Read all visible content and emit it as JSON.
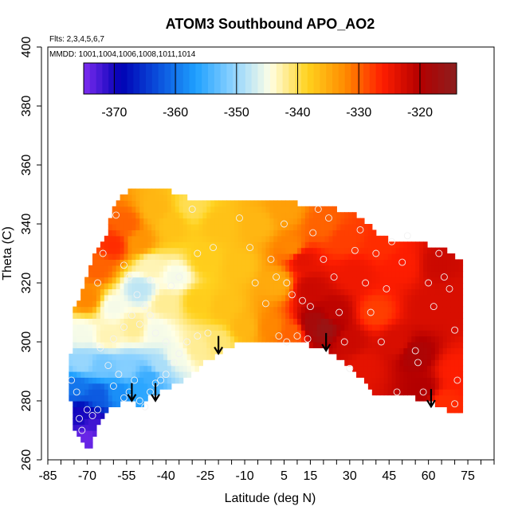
{
  "chart_data": {
    "type": "heatmap",
    "title": "ATOM3 Southbound APO_AO2",
    "annotations": {
      "flights": "Flts: 2,3,4,5,6,7",
      "dates": "MMDD: 1001,1004,1006,1008,1011,1014"
    },
    "xlabel": "Latitude (deg N)",
    "ylabel": "Theta (C)",
    "xlim": [
      -85,
      85
    ],
    "ylim": [
      260,
      400
    ],
    "x_ticks": [
      -85,
      -70,
      -55,
      -40,
      -25,
      -10,
      5,
      15,
      30,
      45,
      60,
      75
    ],
    "x_tick_labels": [
      "-85",
      "-70",
      "-55",
      "-40",
      "-25",
      "-10",
      "5",
      "15",
      "30",
      "45",
      "60",
      "75"
    ],
    "y_ticks": [
      260,
      280,
      300,
      320,
      340,
      360,
      380,
      400
    ],
    "y_tick_labels": [
      "260",
      "280",
      "300",
      "320",
      "340",
      "360",
      "380",
      "400"
    ],
    "grid": false,
    "colorbar": {
      "range": [
        -375,
        -314
      ],
      "ticks": [
        -370,
        -360,
        -350,
        -340,
        -330,
        -320
      ],
      "tick_labels": [
        "-370",
        "-360",
        "-350",
        "-340",
        "-330",
        "-320"
      ],
      "colors": [
        "#7d2cf0",
        "#0000b4",
        "#0a50dc",
        "#1ea0ff",
        "#8cd2ff",
        "#ffffe6",
        "#ffd21e",
        "#ff8c00",
        "#ff1e00",
        "#b40000",
        "#8c1e1e"
      ]
    },
    "domain": {
      "lat": [
        -77,
        -75,
        -72,
        -70,
        -68,
        -66,
        -63,
        -60,
        -57,
        -55,
        -52,
        -50,
        -47,
        -45,
        -42,
        -40,
        -36,
        -32,
        -28,
        -24,
        -20,
        -16,
        -12,
        -8,
        -4,
        0,
        5,
        10,
        15,
        20,
        25,
        30,
        35,
        40,
        45,
        50,
        55,
        60,
        65,
        70,
        72
      ],
      "theta_top": [
        287,
        310,
        316,
        322,
        327,
        330,
        335,
        344,
        348,
        350,
        351,
        352,
        352,
        352,
        352,
        351,
        349,
        348,
        348,
        348,
        348,
        348,
        348,
        348,
        348,
        348,
        348,
        346,
        345,
        345,
        344,
        343,
        341,
        336,
        334,
        333,
        333,
        332,
        331,
        328,
        327
      ],
      "theta_bottom": [
        287,
        272,
        267,
        264,
        266,
        272,
        277,
        279,
        280,
        281,
        280,
        279,
        282,
        283,
        284,
        285,
        287,
        289,
        292,
        295,
        297,
        299,
        301,
        301,
        300,
        300,
        300,
        300,
        300,
        299,
        296,
        293,
        288,
        283,
        282,
        282,
        282,
        281,
        279,
        277,
        276
      ]
    },
    "field_points": [
      {
        "lat": -70,
        "theta": 268,
        "value": -374
      },
      {
        "lat": -72,
        "theta": 275,
        "value": -370
      },
      {
        "lat": -68,
        "theta": 272,
        "value": -372
      },
      {
        "lat": -74,
        "theta": 285,
        "value": -360
      },
      {
        "lat": -66,
        "theta": 282,
        "value": -362
      },
      {
        "lat": -58,
        "theta": 283,
        "value": -358
      },
      {
        "lat": -50,
        "theta": 285,
        "value": -356
      },
      {
        "lat": -46,
        "theta": 288,
        "value": -355
      },
      {
        "lat": -72,
        "theta": 293,
        "value": -350
      },
      {
        "lat": -64,
        "theta": 292,
        "value": -352
      },
      {
        "lat": -55,
        "theta": 291,
        "value": -351
      },
      {
        "lat": -42,
        "theta": 292,
        "value": -349
      },
      {
        "lat": -36,
        "theta": 295,
        "value": -345
      },
      {
        "lat": -28,
        "theta": 298,
        "value": -342
      },
      {
        "lat": -20,
        "theta": 300,
        "value": -341
      },
      {
        "lat": -72,
        "theta": 303,
        "value": -345
      },
      {
        "lat": -62,
        "theta": 302,
        "value": -343
      },
      {
        "lat": -52,
        "theta": 305,
        "value": -342
      },
      {
        "lat": -44,
        "theta": 304,
        "value": -345
      },
      {
        "lat": -60,
        "theta": 312,
        "value": -345
      },
      {
        "lat": -50,
        "theta": 318,
        "value": -348
      },
      {
        "lat": -40,
        "theta": 313,
        "value": -342
      },
      {
        "lat": -46,
        "theta": 326,
        "value": -343
      },
      {
        "lat": -36,
        "theta": 322,
        "value": -345
      },
      {
        "lat": -28,
        "theta": 314,
        "value": -338
      },
      {
        "lat": -18,
        "theta": 312,
        "value": -337
      },
      {
        "lat": -10,
        "theta": 305,
        "value": -336
      },
      {
        "lat": -70,
        "theta": 315,
        "value": -332
      },
      {
        "lat": -66,
        "theta": 325,
        "value": -330
      },
      {
        "lat": -60,
        "theta": 333,
        "value": -327
      },
      {
        "lat": -55,
        "theta": 340,
        "value": -330
      },
      {
        "lat": -50,
        "theta": 334,
        "value": -333
      },
      {
        "lat": -44,
        "theta": 345,
        "value": -336
      },
      {
        "lat": -38,
        "theta": 340,
        "value": -337
      },
      {
        "lat": -30,
        "theta": 346,
        "value": -340
      },
      {
        "lat": -20,
        "theta": 340,
        "value": -337
      },
      {
        "lat": -25,
        "theta": 328,
        "value": -338
      },
      {
        "lat": -12,
        "theta": 326,
        "value": -337
      },
      {
        "lat": -5,
        "theta": 340,
        "value": -336
      },
      {
        "lat": 2,
        "theta": 320,
        "value": -335
      },
      {
        "lat": 5,
        "theta": 345,
        "value": -334
      },
      {
        "lat": 8,
        "theta": 332,
        "value": -332
      },
      {
        "lat": 0,
        "theta": 305,
        "value": -332
      },
      {
        "lat": 8,
        "theta": 303,
        "value": -330
      },
      {
        "lat": 12,
        "theta": 328,
        "value": -324
      },
      {
        "lat": 15,
        "theta": 318,
        "value": -322
      },
      {
        "lat": 16,
        "theta": 306,
        "value": -318
      },
      {
        "lat": 20,
        "theta": 305,
        "value": -316
      },
      {
        "lat": 24,
        "theta": 310,
        "value": -321
      },
      {
        "lat": 20,
        "theta": 340,
        "value": -330
      },
      {
        "lat": 28,
        "theta": 335,
        "value": -328
      },
      {
        "lat": 32,
        "theta": 323,
        "value": -325
      },
      {
        "lat": 30,
        "theta": 300,
        "value": -322
      },
      {
        "lat": 35,
        "theta": 292,
        "value": -324
      },
      {
        "lat": 40,
        "theta": 310,
        "value": -328
      },
      {
        "lat": 42,
        "theta": 333,
        "value": -327
      },
      {
        "lat": 50,
        "theta": 326,
        "value": -326
      },
      {
        "lat": 48,
        "theta": 300,
        "value": -323
      },
      {
        "lat": 55,
        "theta": 296,
        "value": -319
      },
      {
        "lat": 58,
        "theta": 284,
        "value": -320
      },
      {
        "lat": 60,
        "theta": 312,
        "value": -323
      },
      {
        "lat": 64,
        "theta": 326,
        "value": -322
      },
      {
        "lat": 70,
        "theta": 316,
        "value": -323
      },
      {
        "lat": 70,
        "theta": 290,
        "value": -326
      },
      {
        "lat": 66,
        "theta": 280,
        "value": -327
      }
    ],
    "observations": [
      {
        "lat": -76,
        "theta": 287
      },
      {
        "lat": -74,
        "theta": 283
      },
      {
        "lat": -73,
        "theta": 274
      },
      {
        "lat": -72,
        "theta": 270
      },
      {
        "lat": -70,
        "theta": 277
      },
      {
        "lat": -68,
        "theta": 275
      },
      {
        "lat": -66,
        "theta": 277
      },
      {
        "lat": -62,
        "theta": 292
      },
      {
        "lat": -60,
        "theta": 285
      },
      {
        "lat": -58,
        "theta": 289
      },
      {
        "lat": -56,
        "theta": 281
      },
      {
        "lat": -54,
        "theta": 283
      },
      {
        "lat": -52,
        "theta": 287
      },
      {
        "lat": -50,
        "theta": 280
      },
      {
        "lat": -48,
        "theta": 278
      },
      {
        "lat": -46,
        "theta": 283
      },
      {
        "lat": -44,
        "theta": 286
      },
      {
        "lat": -42,
        "theta": 287
      },
      {
        "lat": -40,
        "theta": 289
      },
      {
        "lat": -37,
        "theta": 293
      },
      {
        "lat": -35,
        "theta": 296
      },
      {
        "lat": -32,
        "theta": 300
      },
      {
        "lat": -28,
        "theta": 302
      },
      {
        "lat": -24,
        "theta": 303
      },
      {
        "lat": -65,
        "theta": 298
      },
      {
        "lat": -60,
        "theta": 301
      },
      {
        "lat": -56,
        "theta": 305
      },
      {
        "lat": -53,
        "theta": 309
      },
      {
        "lat": -50,
        "theta": 306
      },
      {
        "lat": -46,
        "theta": 309
      },
      {
        "lat": -44,
        "theta": 303
      },
      {
        "lat": -40,
        "theta": 300
      },
      {
        "lat": -66,
        "theta": 320
      },
      {
        "lat": -64,
        "theta": 330
      },
      {
        "lat": -59,
        "theta": 343
      },
      {
        "lat": -56,
        "theta": 326
      },
      {
        "lat": -54,
        "theta": 322
      },
      {
        "lat": -51,
        "theta": 316
      },
      {
        "lat": -48,
        "theta": 312
      },
      {
        "lat": -46,
        "theta": 321
      },
      {
        "lat": -38,
        "theta": 319
      },
      {
        "lat": -35,
        "theta": 322
      },
      {
        "lat": -30,
        "theta": 345
      },
      {
        "lat": -28,
        "theta": 330
      },
      {
        "lat": -22,
        "theta": 332
      },
      {
        "lat": -12,
        "theta": 342
      },
      {
        "lat": -8,
        "theta": 332
      },
      {
        "lat": -6,
        "theta": 320
      },
      {
        "lat": -2,
        "theta": 313
      },
      {
        "lat": 0,
        "theta": 328
      },
      {
        "lat": 2,
        "theta": 322
      },
      {
        "lat": 5,
        "theta": 340
      },
      {
        "lat": 6,
        "theta": 320
      },
      {
        "lat": 8,
        "theta": 316
      },
      {
        "lat": 3,
        "theta": 302
      },
      {
        "lat": 6,
        "theta": 300
      },
      {
        "lat": 10,
        "theta": 302
      },
      {
        "lat": 12,
        "theta": 314
      },
      {
        "lat": 14,
        "theta": 301
      },
      {
        "lat": 15,
        "theta": 312
      },
      {
        "lat": 16,
        "theta": 337
      },
      {
        "lat": 18,
        "theta": 345
      },
      {
        "lat": 20,
        "theta": 328
      },
      {
        "lat": 22,
        "theta": 342
      },
      {
        "lat": 24,
        "theta": 322
      },
      {
        "lat": 26,
        "theta": 310
      },
      {
        "lat": 28,
        "theta": 300
      },
      {
        "lat": 30,
        "theta": 291
      },
      {
        "lat": 32,
        "theta": 331
      },
      {
        "lat": 34,
        "theta": 338
      },
      {
        "lat": 36,
        "theta": 320
      },
      {
        "lat": 38,
        "theta": 310
      },
      {
        "lat": 40,
        "theta": 330
      },
      {
        "lat": 42,
        "theta": 300
      },
      {
        "lat": 44,
        "theta": 318
      },
      {
        "lat": 46,
        "theta": 334
      },
      {
        "lat": 48,
        "theta": 283
      },
      {
        "lat": 50,
        "theta": 327
      },
      {
        "lat": 52,
        "theta": 336
      },
      {
        "lat": 55,
        "theta": 297
      },
      {
        "lat": 56,
        "theta": 293
      },
      {
        "lat": 58,
        "theta": 283
      },
      {
        "lat": 60,
        "theta": 320
      },
      {
        "lat": 62,
        "theta": 312
      },
      {
        "lat": 64,
        "theta": 330
      },
      {
        "lat": 66,
        "theta": 322
      },
      {
        "lat": 68,
        "theta": 318
      },
      {
        "lat": 70,
        "theta": 304
      },
      {
        "lat": 71,
        "theta": 287
      },
      {
        "lat": 70,
        "theta": 279
      }
    ],
    "arrows": [
      {
        "lat": -53,
        "theta": 286
      },
      {
        "lat": -44,
        "theta": 286
      },
      {
        "lat": -20,
        "theta": 302
      },
      {
        "lat": 21,
        "theta": 303
      },
      {
        "lat": 61,
        "theta": 284
      }
    ]
  }
}
